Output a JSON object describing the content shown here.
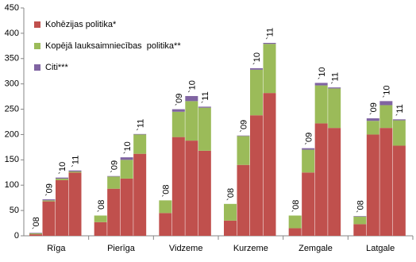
{
  "chart_data": {
    "type": "stacked_bar",
    "groups": [
      "Rīga",
      "Pierīga",
      "Vidzeme",
      "Kurzeme",
      "Zemgale",
      "Latgale"
    ],
    "categories": [
      "`08",
      "`09",
      "`10",
      "`11",
      "`08",
      "`09",
      "`10",
      "`11",
      "`08",
      "`09",
      "`10",
      "`11",
      "`08",
      "`09",
      "`10",
      "`11",
      "`08",
      "`09",
      "`10",
      "`11",
      "`08",
      "`09",
      "`10",
      "`11"
    ],
    "series": [
      {
        "name": "Kohēzijas politika*",
        "color": "#c0504d",
        "values": [
          3,
          68,
          110,
          125,
          27,
          93,
          113,
          162,
          45,
          195,
          188,
          168,
          30,
          140,
          238,
          282,
          15,
          125,
          222,
          213,
          23,
          200,
          213,
          178
        ]
      },
      {
        "name": "Kopējā lauksaimniecības  politika**",
        "color": "#9bbb59",
        "values": [
          2,
          2,
          3,
          2,
          13,
          24,
          37,
          38,
          25,
          50,
          78,
          85,
          33,
          57,
          90,
          97,
          25,
          45,
          75,
          78,
          15,
          27,
          45,
          50
        ]
      },
      {
        "name": "Citi***",
        "color": "#8064a2",
        "values": [
          1,
          2,
          2,
          2,
          0,
          1,
          5,
          1,
          0,
          5,
          10,
          2,
          0,
          1,
          3,
          2,
          0,
          3,
          5,
          2,
          1,
          5,
          8,
          2
        ]
      }
    ],
    "ylim": [
      0,
      450
    ],
    "yticks": [
      0,
      50,
      100,
      150,
      200,
      250,
      300,
      350,
      400,
      450
    ]
  }
}
